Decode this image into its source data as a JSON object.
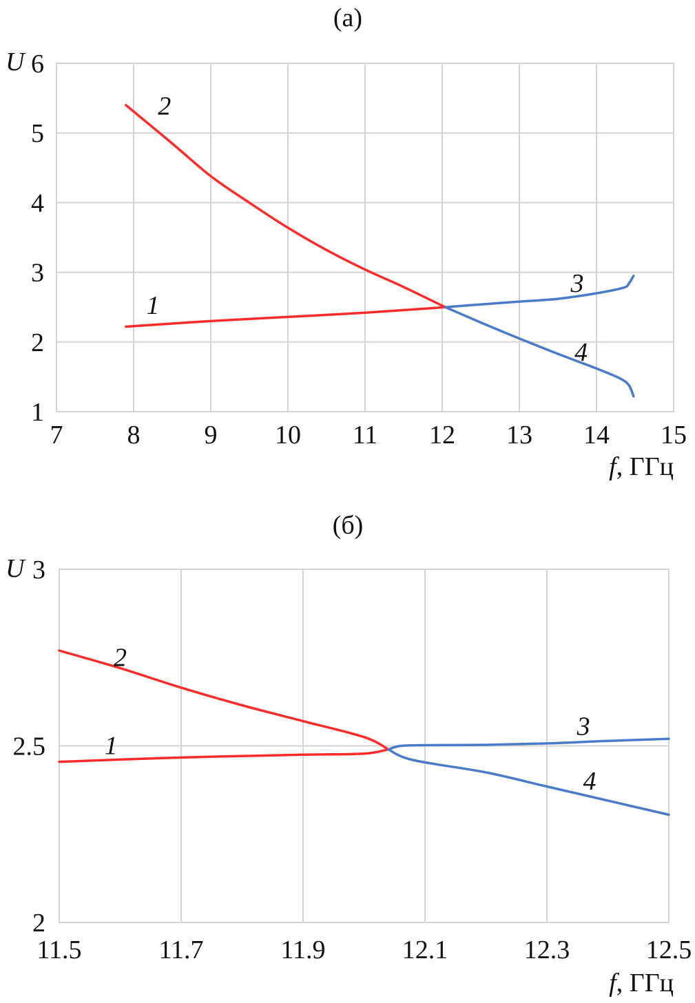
{
  "chart_data": [
    {
      "type": "line",
      "title": "(а)",
      "xlabel": "f, ГГц",
      "ylabel": "U",
      "xlim": [
        7,
        15
      ],
      "ylim": [
        1,
        6
      ],
      "x_ticks": [
        7,
        8,
        9,
        10,
        11,
        12,
        13,
        14,
        15
      ],
      "y_ticks": [
        1,
        2,
        3,
        4,
        5,
        6
      ],
      "grid": true,
      "colors": {
        "red": "#ff2a2a",
        "blue": "#4a7bc8"
      },
      "series": [
        {
          "name": "1",
          "color": "#ff2a2a",
          "points": [
            [
              7.9,
              2.22
            ],
            [
              9,
              2.3
            ],
            [
              10,
              2.36
            ],
            [
              11,
              2.42
            ],
            [
              12.04,
              2.5
            ]
          ],
          "label_at": [
            8.25,
            2.52
          ]
        },
        {
          "name": "2",
          "color": "#ff2a2a",
          "points": [
            [
              7.9,
              5.4
            ],
            [
              8.5,
              4.85
            ],
            [
              9,
              4.38
            ],
            [
              9.5,
              4.0
            ],
            [
              10,
              3.64
            ],
            [
              10.5,
              3.32
            ],
            [
              11,
              3.04
            ],
            [
              11.5,
              2.79
            ],
            [
              12.04,
              2.5
            ]
          ],
          "label_at": [
            8.4,
            5.38
          ]
        },
        {
          "name": "3",
          "color": "#4a7bc8",
          "points": [
            [
              12.04,
              2.5
            ],
            [
              12.5,
              2.54
            ],
            [
              13,
              2.58
            ],
            [
              13.5,
              2.62
            ],
            [
              14,
              2.7
            ],
            [
              14.35,
              2.78
            ],
            [
              14.42,
              2.84
            ],
            [
              14.48,
              2.95
            ]
          ],
          "label_at": [
            13.75,
            2.84
          ]
        },
        {
          "name": "4",
          "color": "#4a7bc8",
          "points": [
            [
              12.04,
              2.5
            ],
            [
              12.5,
              2.28
            ],
            [
              13,
              2.05
            ],
            [
              13.5,
              1.83
            ],
            [
              14,
              1.62
            ],
            [
              14.3,
              1.48
            ],
            [
              14.42,
              1.38
            ],
            [
              14.48,
              1.22
            ]
          ],
          "label_at": [
            13.8,
            1.85
          ]
        }
      ]
    },
    {
      "type": "line",
      "title": "(б)",
      "xlabel": "f, ГГц",
      "ylabel": "U",
      "xlim": [
        11.5,
        12.5
      ],
      "ylim": [
        2,
        3
      ],
      "x_ticks": [
        11.5,
        11.7,
        11.9,
        12.1,
        12.3,
        12.5
      ],
      "y_ticks": [
        2,
        2.5,
        3
      ],
      "grid": true,
      "colors": {
        "red": "#ff2a2a",
        "blue": "#4a7bc8"
      },
      "series": [
        {
          "name": "1",
          "color": "#ff2a2a",
          "points": [
            [
              11.5,
              2.455
            ],
            [
              11.7,
              2.467
            ],
            [
              11.9,
              2.475
            ],
            [
              12.0,
              2.478
            ],
            [
              12.04,
              2.49
            ]
          ],
          "label_at": [
            11.585,
            2.5
          ]
        },
        {
          "name": "2",
          "color": "#ff2a2a",
          "points": [
            [
              11.5,
              2.77
            ],
            [
              11.6,
              2.72
            ],
            [
              11.7,
              2.665
            ],
            [
              11.8,
              2.615
            ],
            [
              11.9,
              2.57
            ],
            [
              12.0,
              2.525
            ],
            [
              12.04,
              2.49
            ]
          ],
          "label_at": [
            11.6,
            2.75
          ]
        },
        {
          "name": "3",
          "color": "#4a7bc8",
          "points": [
            [
              12.04,
              2.49
            ],
            [
              12.06,
              2.5
            ],
            [
              12.1,
              2.502
            ],
            [
              12.2,
              2.503
            ],
            [
              12.3,
              2.507
            ],
            [
              12.4,
              2.514
            ],
            [
              12.5,
              2.52
            ]
          ],
          "label_at": [
            12.36,
            2.555
          ]
        },
        {
          "name": "4",
          "color": "#4a7bc8",
          "points": [
            [
              12.04,
              2.49
            ],
            [
              12.08,
              2.46
            ],
            [
              12.2,
              2.425
            ],
            [
              12.3,
              2.385
            ],
            [
              12.4,
              2.345
            ],
            [
              12.5,
              2.305
            ]
          ],
          "label_at": [
            12.37,
            2.4
          ]
        }
      ]
    }
  ]
}
